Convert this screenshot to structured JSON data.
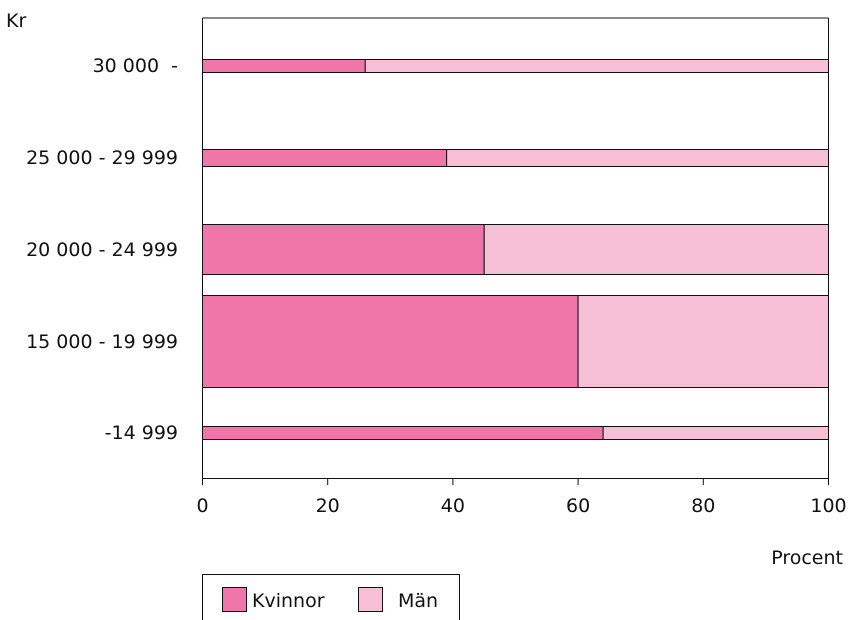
{
  "chart_data": {
    "type": "bar",
    "orientation": "horizontal",
    "stacked": true,
    "variable_width": true,
    "ylabel": "Kr",
    "xlabel": "Procent",
    "xlim": [
      0,
      100
    ],
    "x_ticks": [
      "0",
      "20",
      "40",
      "60",
      "80",
      "100"
    ],
    "categories": [
      "30 000  -",
      "25 000 - 29 999",
      "20 000 - 24 999",
      "15 000 - 19 999",
      "-14 999"
    ],
    "relative_widths": [
      0.14,
      0.18,
      0.54,
      1.0,
      0.14
    ],
    "series": [
      {
        "name": "Kvinnor",
        "values": [
          26,
          39,
          45,
          60,
          64
        ],
        "color": "#f075a8"
      },
      {
        "name": "Män",
        "values": [
          74,
          61,
          55,
          40,
          36
        ],
        "color": "#f6bfd6"
      }
    ],
    "legend_position": "bottom-left",
    "grid": false
  }
}
